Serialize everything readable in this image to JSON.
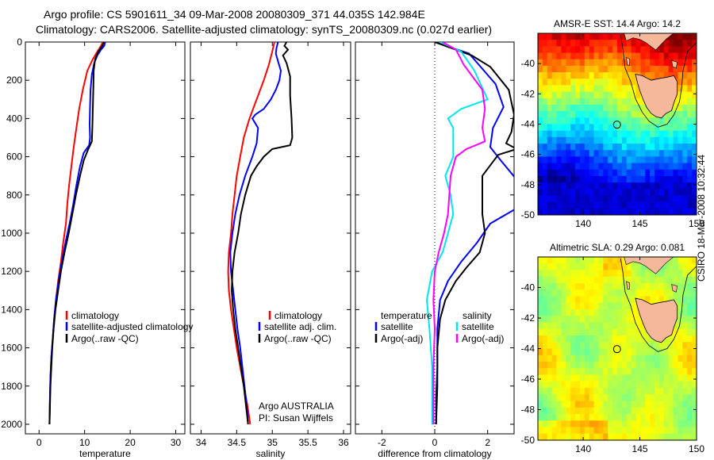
{
  "title": {
    "line1": "Argo profile: CS 5901611_34 09-Mar-2008 20080309_371 44.035S 142.984E",
    "line2": "Climatology: CARS2006. Satellite-adjusted climatology: synTS_20080309.nc (0.027d earlier)"
  },
  "colors": {
    "red": "#ff0000",
    "blue": "#0000ff",
    "black": "#000000",
    "cyan": "#00e5ee",
    "magenta": "#ff00ff",
    "land": "#f5b89b"
  },
  "timestamp": "CSIRO 18-Mar-2008 10:32:44",
  "chart_data": [
    {
      "type": "line",
      "xlabel": "temperature",
      "ylabel": "",
      "xlim": [
        -3,
        32
      ],
      "ylim": [
        2050,
        0
      ],
      "xticks": [
        0,
        10,
        20,
        30
      ],
      "yticks": [
        0,
        200,
        400,
        600,
        800,
        1000,
        1200,
        1400,
        1600,
        1800,
        2000
      ],
      "legend": [
        {
          "label": "climatology",
          "color": "red"
        },
        {
          "label": "satellite-adjusted climatology",
          "color": "blue"
        },
        {
          "label": "Argo(..raw -QC)",
          "color": "black"
        }
      ],
      "series": [
        {
          "name": "climatology",
          "color": "red",
          "points": [
            [
              14,
              0
            ],
            [
              13.6,
              20
            ],
            [
              12.8,
              50
            ],
            [
              11.8,
              90
            ],
            [
              10.6,
              150
            ],
            [
              9.6,
              250
            ],
            [
              8.8,
              350
            ],
            [
              8.2,
              450
            ],
            [
              7.6,
              550
            ],
            [
              7.1,
              650
            ],
            [
              6.6,
              750
            ],
            [
              6.2,
              850
            ],
            [
              5.9,
              950
            ],
            [
              5.3,
              1050
            ],
            [
              4.8,
              1150
            ],
            [
              4.2,
              1250
            ],
            [
              3.7,
              1350
            ],
            [
              3.3,
              1450
            ],
            [
              3.0,
              1550
            ],
            [
              2.7,
              1650
            ],
            [
              2.5,
              1750
            ],
            [
              2.4,
              1850
            ],
            [
              2.3,
              2000
            ]
          ]
        },
        {
          "name": "satellite-adjusted climatology",
          "color": "blue",
          "points": [
            [
              14.5,
              0
            ],
            [
              14.3,
              20
            ],
            [
              13.6,
              40
            ],
            [
              12.8,
              70
            ],
            [
              12.1,
              110
            ],
            [
              11.6,
              170
            ],
            [
              11.3,
              250
            ],
            [
              11.2,
              340
            ],
            [
              11.1,
              430
            ],
            [
              11.2,
              500
            ],
            [
              11.0,
              540
            ],
            [
              9.8,
              580
            ],
            [
              9.0,
              650
            ],
            [
              8.2,
              750
            ],
            [
              7.5,
              850
            ],
            [
              6.7,
              950
            ],
            [
              5.8,
              1050
            ],
            [
              5.0,
              1150
            ],
            [
              4.3,
              1250
            ],
            [
              3.7,
              1350
            ],
            [
              3.3,
              1450
            ],
            [
              3.0,
              1550
            ],
            [
              2.7,
              1650
            ],
            [
              2.5,
              1750
            ],
            [
              2.4,
              1850
            ],
            [
              2.3,
              2000
            ]
          ]
        },
        {
          "name": "Argo(..raw -QC)",
          "color": "black",
          "points": [
            [
              14.2,
              0
            ],
            [
              13.9,
              20
            ],
            [
              13.0,
              50
            ],
            [
              12.3,
              90
            ],
            [
              12.0,
              150
            ],
            [
              11.9,
              250
            ],
            [
              11.8,
              350
            ],
            [
              11.7,
              450
            ],
            [
              11.6,
              520
            ],
            [
              10.8,
              560
            ],
            [
              9.8,
              620
            ],
            [
              9.0,
              700
            ],
            [
              8.1,
              800
            ],
            [
              7.3,
              900
            ],
            [
              6.5,
              1000
            ],
            [
              5.6,
              1100
            ],
            [
              4.8,
              1200
            ],
            [
              4.2,
              1300
            ],
            [
              3.6,
              1400
            ],
            [
              3.2,
              1500
            ],
            [
              2.9,
              1600
            ],
            [
              2.7,
              1700
            ],
            [
              2.5,
              1800
            ],
            [
              2.4,
              1900
            ],
            [
              2.3,
              2000
            ]
          ]
        }
      ]
    },
    {
      "type": "line",
      "xlabel": "salinity",
      "xlim": [
        33.85,
        36.1
      ],
      "ylim": [
        2050,
        0
      ],
      "xticks": [
        34,
        34.5,
        35,
        35.5,
        36
      ],
      "legend": [
        {
          "label": "climatology",
          "color": "red"
        },
        {
          "label": "satellite adj. clim.",
          "color": "blue"
        },
        {
          "label": "Argo(..raw -QC)",
          "color": "black"
        }
      ],
      "annotation": [
        "Argo AUSTRALIA",
        "PI: Susan Wijffels"
      ],
      "series": [
        {
          "name": "climatology",
          "color": "red",
          "points": [
            [
              35.03,
              0
            ],
            [
              35.0,
              50
            ],
            [
              34.95,
              120
            ],
            [
              34.88,
              200
            ],
            [
              34.78,
              300
            ],
            [
              34.68,
              400
            ],
            [
              34.6,
              500
            ],
            [
              34.55,
              600
            ],
            [
              34.5,
              700
            ],
            [
              34.47,
              800
            ],
            [
              34.44,
              900
            ],
            [
              34.42,
              1000
            ],
            [
              34.39,
              1100
            ],
            [
              34.38,
              1200
            ],
            [
              34.39,
              1300
            ],
            [
              34.42,
              1400
            ],
            [
              34.46,
              1500
            ],
            [
              34.5,
              1600
            ],
            [
              34.55,
              1700
            ],
            [
              34.6,
              1800
            ],
            [
              34.65,
              1900
            ],
            [
              34.69,
              2000
            ]
          ]
        },
        {
          "name": "satellite adj. clim.",
          "color": "blue",
          "points": [
            [
              35.08,
              0
            ],
            [
              35.06,
              30
            ],
            [
              35.05,
              60
            ],
            [
              35.08,
              100
            ],
            [
              35.12,
              150
            ],
            [
              35.1,
              200
            ],
            [
              35.05,
              250
            ],
            [
              34.98,
              300
            ],
            [
              34.88,
              350
            ],
            [
              34.76,
              380
            ],
            [
              34.72,
              400
            ],
            [
              34.8,
              450
            ],
            [
              34.78,
              530
            ],
            [
              34.72,
              600
            ],
            [
              34.62,
              700
            ],
            [
              34.54,
              800
            ],
            [
              34.48,
              900
            ],
            [
              34.44,
              1000
            ],
            [
              34.41,
              1100
            ],
            [
              34.42,
              1200
            ],
            [
              34.45,
              1300
            ],
            [
              34.48,
              1400
            ],
            [
              34.51,
              1500
            ],
            [
              34.55,
              1600
            ],
            [
              34.58,
              1700
            ],
            [
              34.61,
              1800
            ],
            [
              34.64,
              1900
            ],
            [
              34.66,
              2000
            ]
          ]
        },
        {
          "name": "Argo(..raw -QC)",
          "color": "black",
          "points": [
            [
              35.2,
              0
            ],
            [
              35.17,
              20
            ],
            [
              35.22,
              40
            ],
            [
              35.15,
              70
            ],
            [
              35.2,
              110
            ],
            [
              35.25,
              180
            ],
            [
              35.25,
              280
            ],
            [
              35.27,
              400
            ],
            [
              35.28,
              500
            ],
            [
              35.25,
              540
            ],
            [
              35.0,
              560
            ],
            [
              34.88,
              600
            ],
            [
              34.78,
              650
            ],
            [
              34.7,
              700
            ],
            [
              34.62,
              800
            ],
            [
              34.56,
              900
            ],
            [
              34.52,
              1000
            ],
            [
              34.47,
              1100
            ],
            [
              34.44,
              1200
            ],
            [
              34.43,
              1300
            ],
            [
              34.45,
              1400
            ],
            [
              34.48,
              1500
            ],
            [
              34.52,
              1600
            ],
            [
              34.56,
              1700
            ],
            [
              34.6,
              1800
            ],
            [
              34.63,
              1900
            ],
            [
              34.66,
              2000
            ]
          ]
        }
      ]
    },
    {
      "type": "line",
      "xlabel": "difference from climatology",
      "xlim": [
        -3,
        3
      ],
      "ylim": [
        2050,
        0
      ],
      "xticks": [
        -2,
        0,
        2
      ],
      "legend_headers": [
        "temperature",
        "salinity"
      ],
      "legend": [
        {
          "label": "satellite",
          "color": "blue"
        },
        {
          "label": "Argo(-adj)",
          "color": "black"
        },
        {
          "label": "satellite",
          "color": "cyan"
        },
        {
          "label": "Argo(-adj)",
          "color": "magenta"
        }
      ],
      "series": [
        {
          "name": "temperature satellite",
          "color": "blue",
          "points": [
            [
              0,
              0
            ],
            [
              1.3,
              60
            ],
            [
              2.3,
              220
            ],
            [
              2.6,
              340
            ],
            [
              2.2,
              450
            ],
            [
              2.1,
              550
            ],
            [
              2.5,
              620
            ],
            [
              3.1,
              720
            ],
            [
              3.1,
              870
            ],
            [
              2.1,
              950
            ],
            [
              1.6,
              1050
            ],
            [
              1.0,
              1150
            ],
            [
              0.5,
              1250
            ],
            [
              0.2,
              1350
            ],
            [
              0.1,
              1500
            ],
            [
              0.1,
              1700
            ],
            [
              0.05,
              1850
            ],
            [
              0.05,
              2000
            ]
          ]
        },
        {
          "name": "temperature Argo(-adj)",
          "color": "black",
          "points": [
            [
              0,
              0
            ],
            [
              1.4,
              70
            ],
            [
              2.1,
              130
            ],
            [
              2.8,
              250
            ],
            [
              3.0,
              380
            ],
            [
              2.9,
              470
            ],
            [
              2.7,
              530
            ],
            [
              3.1,
              560
            ],
            [
              2.4,
              590
            ],
            [
              1.8,
              700
            ],
            [
              1.8,
              900
            ],
            [
              1.9,
              1000
            ],
            [
              1.7,
              1100
            ],
            [
              1.2,
              1180
            ],
            [
              0.8,
              1250
            ],
            [
              0.4,
              1350
            ],
            [
              0.2,
              1450
            ],
            [
              0.1,
              1600
            ],
            [
              0.1,
              1800
            ],
            [
              0.05,
              2000
            ]
          ]
        },
        {
          "name": "salinity satellite",
          "color": "cyan",
          "points": [
            [
              0.2,
              0
            ],
            [
              1.0,
              50
            ],
            [
              1.5,
              150
            ],
            [
              2.0,
              300
            ],
            [
              1.0,
              350
            ],
            [
              0.5,
              400
            ],
            [
              0.7,
              450
            ],
            [
              0.7,
              600
            ],
            [
              0.4,
              700
            ],
            [
              0.6,
              800
            ],
            [
              0.7,
              900
            ],
            [
              0.5,
              1000
            ],
            [
              0.3,
              1100
            ],
            [
              -0.1,
              1200
            ],
            [
              -0.3,
              1350
            ],
            [
              -0.2,
              1500
            ],
            [
              -0.1,
              1700
            ],
            [
              -0.1,
              1900
            ],
            [
              -0.1,
              2000
            ]
          ]
        },
        {
          "name": "salinity Argo(-adj)",
          "color": "magenta",
          "points": [
            [
              0.3,
              0
            ],
            [
              0.8,
              40
            ],
            [
              1.1,
              120
            ],
            [
              1.8,
              250
            ],
            [
              1.9,
              350
            ],
            [
              1.8,
              450
            ],
            [
              1.9,
              520
            ],
            [
              1.2,
              560
            ],
            [
              0.8,
              600
            ],
            [
              0.6,
              700
            ],
            [
              0.5,
              900
            ],
            [
              0.35,
              1000
            ],
            [
              0.15,
              1100
            ],
            [
              0.0,
              1200
            ],
            [
              -0.05,
              1350
            ],
            [
              0.0,
              1500
            ],
            [
              -0.05,
              1700
            ],
            [
              -0.05,
              1900
            ],
            [
              -0.05,
              2000
            ]
          ]
        }
      ]
    },
    {
      "type": "heatmap",
      "title": "AMSR-E SST: 14.4 Argo: 14.2",
      "xlim": [
        136,
        150
      ],
      "ylim": [
        -50,
        -38
      ],
      "xticks": [
        140,
        145,
        150
      ],
      "yticks": [
        -40,
        -42,
        -44,
        -46,
        -48,
        -50
      ],
      "argo_location": [
        142.984,
        -44.035
      ]
    },
    {
      "type": "heatmap",
      "title": "Altimetric SLA: 0.29 Argo: 0.081",
      "xlim": [
        136,
        150
      ],
      "ylim": [
        -50,
        -38
      ],
      "xticks": [
        140,
        145,
        150
      ],
      "yticks": [
        -40,
        -42,
        -44,
        -46,
        -48,
        -50
      ],
      "argo_location": [
        142.984,
        -44.035
      ]
    }
  ]
}
